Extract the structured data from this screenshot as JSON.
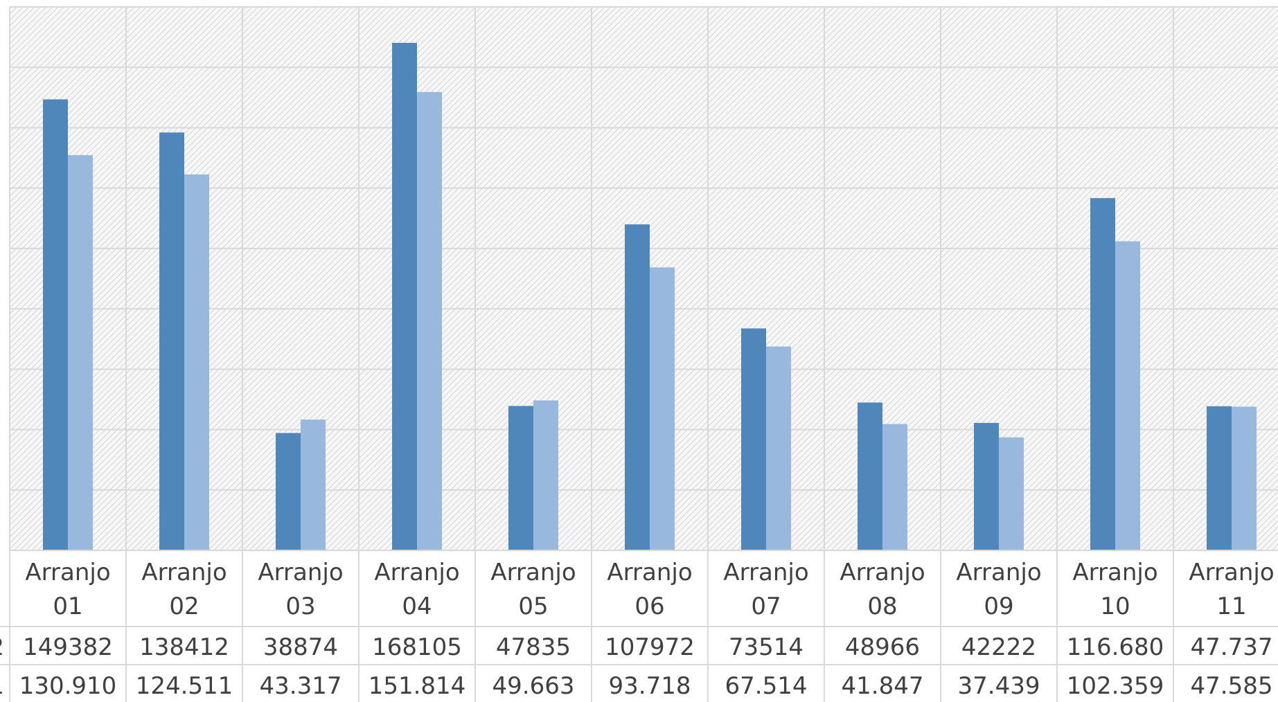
{
  "chart_data": {
    "type": "bar",
    "categories": [
      [
        "Arranjo",
        "01"
      ],
      [
        "Arranjo",
        "02"
      ],
      [
        "Arranjo",
        "03"
      ],
      [
        "Arranjo",
        "04"
      ],
      [
        "Arranjo",
        "05"
      ],
      [
        "Arranjo",
        "06"
      ],
      [
        "Arranjo",
        "07"
      ],
      [
        "Arranjo",
        "08"
      ],
      [
        "Arranjo",
        "09"
      ],
      [
        "Arranjo",
        "10"
      ],
      [
        "Arranjo",
        "11"
      ]
    ],
    "series": [
      {
        "color": "#4f87bb",
        "legend_key": "2",
        "values": [
          149382,
          138412,
          38874,
          168105,
          47835,
          107972,
          73514,
          48966,
          42222,
          116680,
          47737
        ],
        "labels": [
          "149382",
          "138412",
          "38874",
          "168105",
          "47835",
          "107972",
          "73514",
          "48966",
          "42222",
          "116.680",
          "47.737"
        ]
      },
      {
        "color": "#98b8de",
        "legend_key": "1",
        "values": [
          130910,
          124511,
          43317,
          151814,
          49663,
          93718,
          67514,
          41847,
          37439,
          102359,
          47585
        ],
        "labels": [
          "130.910",
          "124.511",
          "43.317",
          "151.814",
          "49.663",
          "93.718",
          "67.514",
          "41.847",
          "37.439",
          "102.359",
          "47.585"
        ]
      }
    ],
    "ylim": [
      0,
      180000
    ],
    "grid": true,
    "data_table": true
  }
}
